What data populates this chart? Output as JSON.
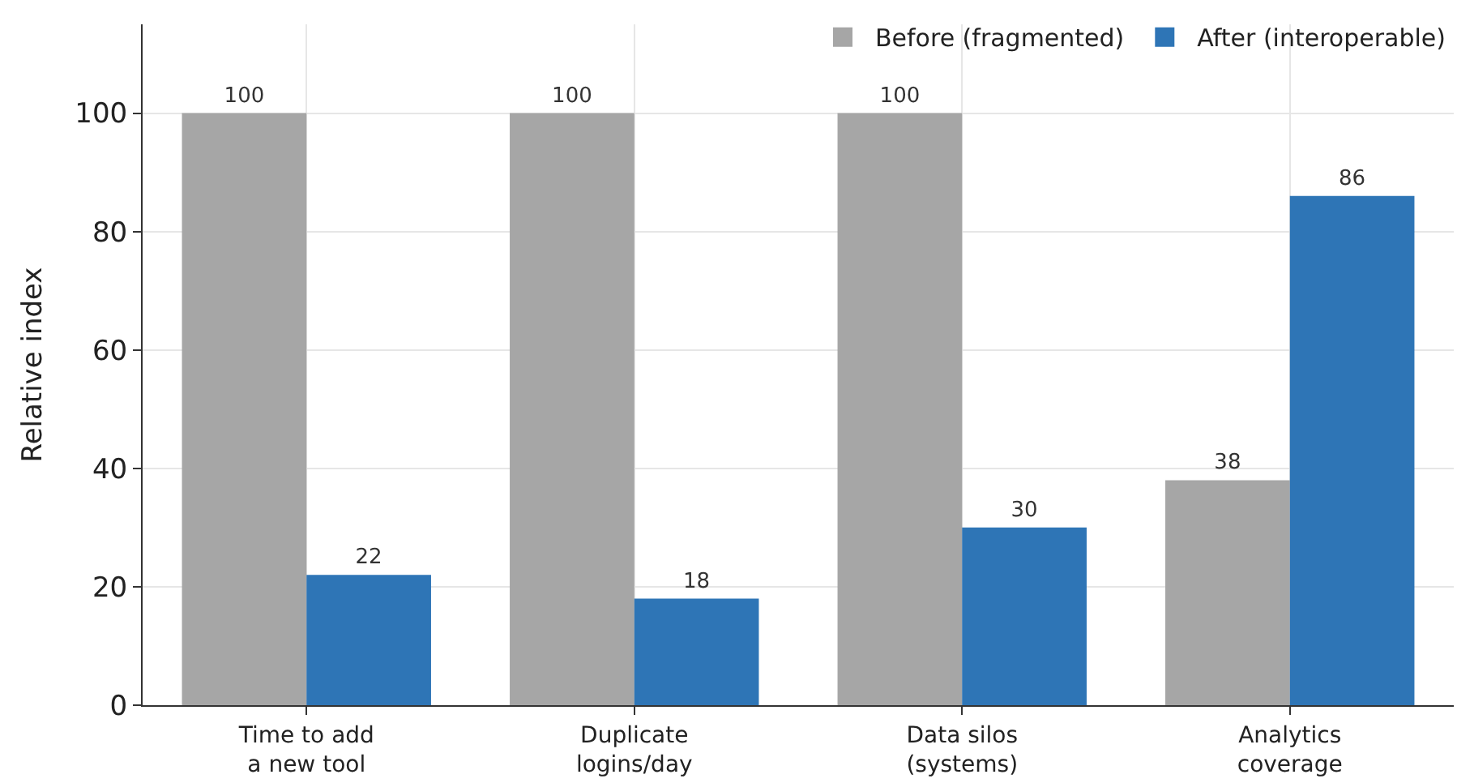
{
  "chart_data": {
    "type": "bar",
    "ylabel": "Relative index",
    "categories": [
      "Time to add\na new tool",
      "Duplicate\nlogins/day",
      "Data silos\n(systems)",
      "Analytics\ncoverage"
    ],
    "series": [
      {
        "name": "Before (fragmented)",
        "color": "#a6a6a6",
        "values": [
          100,
          100,
          100,
          38
        ]
      },
      {
        "name": "After (interoperable)",
        "color": "#2e75b6",
        "values": [
          22,
          18,
          30,
          86
        ]
      }
    ],
    "ylim": [
      0,
      115
    ],
    "yticks": [
      0,
      20,
      40,
      60,
      80,
      100
    ],
    "grid": true,
    "legend": "top right",
    "data_labels": true
  }
}
